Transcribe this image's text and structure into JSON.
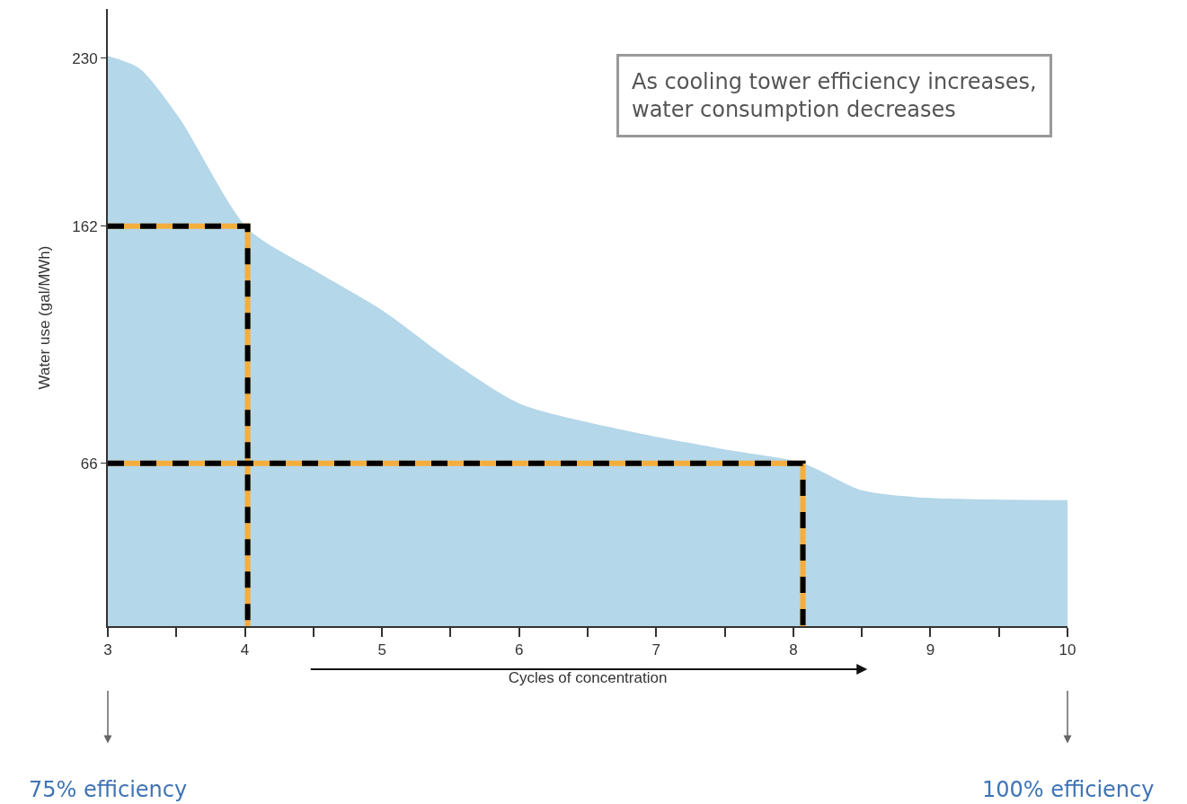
{
  "chart_data": {
    "type": "area",
    "xlabel": "Cycles of concentration",
    "ylabel": "Water use (gal/MWh)",
    "xlim": [
      3,
      10
    ],
    "xticks": [
      3,
      {
        "value": 3.5,
        "label": null
      },
      4,
      {
        "value": 4.5,
        "label": null
      },
      5,
      {
        "value": 5.5,
        "label": null
      },
      6,
      {
        "value": 6.5,
        "label": null
      },
      7,
      {
        "value": 7.5,
        "label": null
      },
      8,
      {
        "value": 8.5,
        "label": null
      },
      9,
      {
        "value": 9.5,
        "label": null
      },
      10
    ],
    "ylim": [
      0,
      250
    ],
    "yticks": [
      66,
      162,
      230
    ],
    "series": [
      {
        "color": "#b4d7e9",
        "x": [
          3,
          3.23,
          3.52,
          4.02,
          4.51,
          5.0,
          5.49,
          6.01,
          6.8,
          7.46,
          8.07,
          8.5,
          8.96,
          10
        ],
        "values": [
          231,
          226,
          206,
          161,
          144,
          128,
          108,
          90,
          79,
          72,
          66,
          55,
          52,
          51
        ]
      },
      {
        "type": "line",
        "color": "#000000",
        "line_style": "dashed",
        "x": [
          3,
          4.02,
          4.02
        ],
        "values": [
          162,
          162,
          0
        ]
      },
      {
        "type": "line",
        "color": "#000000",
        "line_style": "dashed",
        "x": [
          3,
          8.07,
          8.07
        ],
        "values": [
          66,
          66,
          0
        ]
      }
    ],
    "annotations": [
      "As cooling tower efficiency increases,\nwater consumption decreases",
      "75% efficiency",
      "100% efficiency"
    ]
  }
}
